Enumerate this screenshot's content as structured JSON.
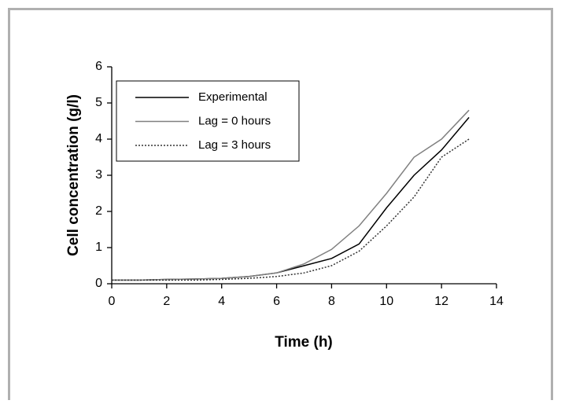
{
  "chart_data": {
    "type": "line",
    "x_label": "Time (h)",
    "y_label": "Cell concentration (g/l)",
    "x": [
      0,
      1,
      2,
      3,
      4,
      5,
      6,
      7,
      8,
      9,
      10,
      11,
      12,
      13
    ],
    "series": [
      {
        "name": "Experimental",
        "color": "#000000",
        "style": "solid",
        "values": [
          0.1,
          0.1,
          0.12,
          0.13,
          0.15,
          0.2,
          0.3,
          0.5,
          0.7,
          1.1,
          2.1,
          3.0,
          3.7,
          4.6
        ]
      },
      {
        "name": "Lag = 0 hours",
        "color": "#808080",
        "style": "solid",
        "values": [
          0.1,
          0.1,
          0.12,
          0.13,
          0.15,
          0.2,
          0.3,
          0.55,
          0.95,
          1.6,
          2.5,
          3.5,
          4.0,
          4.8
        ]
      },
      {
        "name": "Lag = 3 hours",
        "color": "#333333",
        "style": "dotted",
        "values": [
          0.1,
          0.1,
          0.1,
          0.1,
          0.12,
          0.15,
          0.2,
          0.3,
          0.5,
          0.9,
          1.6,
          2.4,
          3.5,
          4.0
        ]
      }
    ],
    "xlim": [
      0,
      14
    ],
    "xticks": [
      0,
      2,
      4,
      6,
      8,
      10,
      12,
      14
    ],
    "ylim": [
      0,
      6
    ],
    "yticks": [
      0,
      1,
      2,
      3,
      4,
      5,
      6
    ],
    "grid": false,
    "legend": "upper left"
  }
}
